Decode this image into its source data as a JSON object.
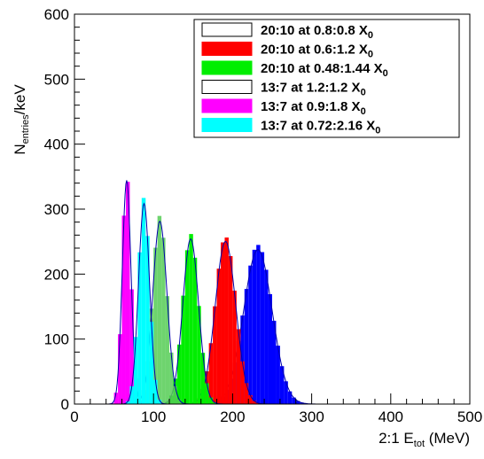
{
  "chart_data": {
    "type": "bar",
    "xlabel": "2:1 E",
    "xlabel_sub": "tot",
    "xlabel_unit": " (MeV)",
    "ylabel": "N",
    "ylabel_sub": "entries",
    "ylabel_unit": "/keV",
    "xlim": [
      0,
      500
    ],
    "ylim": [
      0,
      600
    ],
    "x_ticks": [
      0,
      100,
      200,
      300,
      400,
      500
    ],
    "y_ticks": [
      0,
      100,
      200,
      300,
      400,
      500,
      600
    ],
    "grid": false,
    "legend_placement": "top-right",
    "bin_width": 5,
    "series": [
      {
        "name": "20:10 at 0.8:0.8",
        "sub": "0",
        "color": "#0000ff",
        "filled": false,
        "mean": 232,
        "sigma": 18,
        "peak": 245
      },
      {
        "name": "20:10 at 0.6:1.2",
        "sub": "0",
        "color": "#ff0000",
        "filled": true,
        "mean": 191,
        "sigma": 13,
        "peak": 258
      },
      {
        "name": "20:10 at 0.48:1.44",
        "sub": "0",
        "color": "#00ee00",
        "filled": true,
        "mean": 147,
        "sigma": 10,
        "peak": 262
      },
      {
        "name": "13:7  at 1.2:1.2",
        "sub": "0",
        "color": "#55cc55",
        "filled": false,
        "mean": 108,
        "sigma": 9,
        "peak": 290
      },
      {
        "name": "13:7  at 0.9:1.8",
        "sub": "0",
        "color": "#ff00ff",
        "filled": true,
        "mean": 66,
        "sigma": 5.5,
        "peak": 355
      },
      {
        "name": "13:7  at 0.72:2.16",
        "sub": "0",
        "color": "#00ffff",
        "filled": true,
        "mean": 88,
        "sigma": 7,
        "peak": 318
      }
    ]
  }
}
